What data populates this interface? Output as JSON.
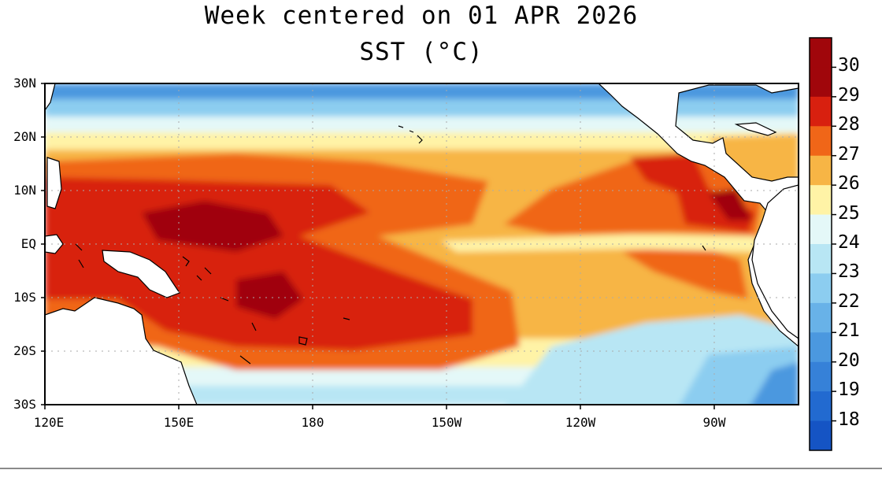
{
  "title": "Week centered on 01 APR 2026",
  "subtitle": "SST (°C)",
  "lat_labels": [
    "30N",
    "20N",
    "10N",
    "EQ",
    "10S",
    "20S",
    "30S"
  ],
  "lon_labels": [
    "120E",
    "150E",
    "180",
    "150W",
    "120W",
    "90W"
  ],
  "colorbar": {
    "labels": [
      "30",
      "29",
      "28",
      "27",
      "26",
      "25",
      "24",
      "23",
      "22",
      "21",
      "20",
      "19",
      "18"
    ],
    "colors": [
      "#a0060b",
      "#d8200f",
      "#f06618",
      "#f7b545",
      "#fff3a6",
      "#e4f8f8",
      "#b8e6f4",
      "#8ccdf0",
      "#68b2e8",
      "#4b98df",
      "#3681d8",
      "#226ad0",
      "#1554c4"
    ]
  },
  "colors": {
    "land": "#ffffff",
    "coast": "#000000",
    "grid": "#aaaaaa",
    "frame": "#000000"
  }
}
